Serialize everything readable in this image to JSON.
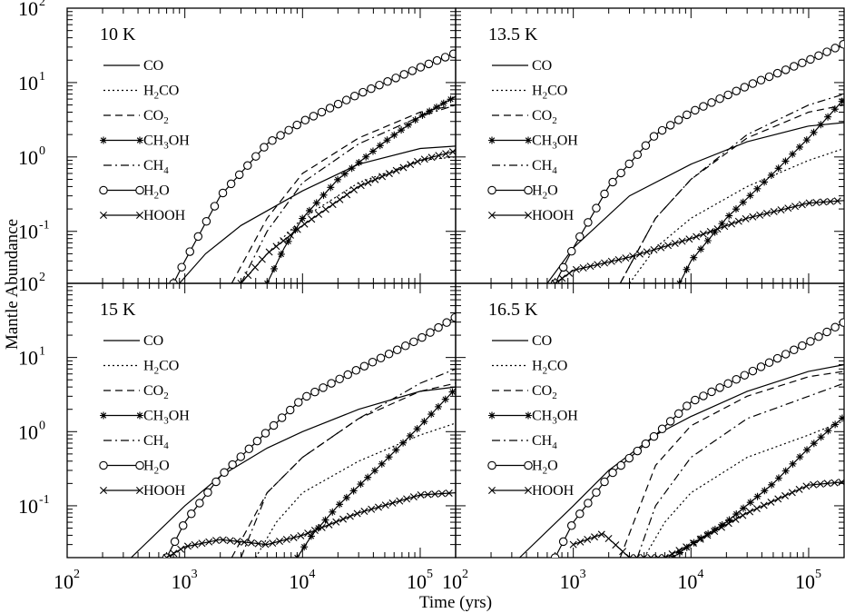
{
  "figure": {
    "xlabel": "Time (yrs)",
    "ylabel": "Mantle Abundance"
  },
  "chart_data": [
    {
      "type": "line",
      "title": "10 K",
      "xscale": "log",
      "yscale": "log",
      "xlim": [
        100,
        200000
      ],
      "ylim": [
        0.02,
        100
      ],
      "xlabel": "Time (yrs)",
      "ylabel": "Mantle Abundance",
      "legend": "top-left",
      "series": [
        {
          "name": "CO",
          "marker": "none",
          "dash": "solid",
          "x": [
            900,
            1500,
            3000,
            10000,
            30000,
            100000,
            200000
          ],
          "y": [
            0.02,
            0.05,
            0.12,
            0.35,
            0.8,
            1.3,
            1.4
          ]
        },
        {
          "name": "H2CO",
          "marker": "none",
          "dash": "dotted",
          "x": [
            3000,
            5000,
            10000,
            30000,
            100000,
            200000
          ],
          "y": [
            0.02,
            0.05,
            0.15,
            0.45,
            0.9,
            1.0
          ]
        },
        {
          "name": "CO2",
          "marker": "none",
          "dash": "dashed",
          "x": [
            2500,
            5000,
            10000,
            30000,
            100000,
            200000
          ],
          "y": [
            0.02,
            0.15,
            0.6,
            1.8,
            4.0,
            5.0
          ]
        },
        {
          "name": "CH3OH",
          "marker": "star",
          "dash": "solid",
          "x": [
            5000,
            7000,
            10000,
            20000,
            50000,
            100000,
            200000
          ],
          "y": [
            0.02,
            0.06,
            0.15,
            0.5,
            1.6,
            3.5,
            6.5
          ]
        },
        {
          "name": "CH4",
          "marker": "none",
          "dash": "dashdot",
          "x": [
            3000,
            5000,
            10000,
            30000,
            100000,
            200000
          ],
          "y": [
            0.02,
            0.1,
            0.45,
            1.5,
            3.5,
            5.0
          ]
        },
        {
          "name": "H2O",
          "marker": "circle",
          "dash": "solid",
          "x": [
            800,
            1000,
            2000,
            5000,
            10000,
            30000,
            100000,
            200000
          ],
          "y": [
            0.02,
            0.04,
            0.3,
            1.5,
            3.0,
            7.0,
            16.0,
            25.0
          ]
        },
        {
          "name": "HOOH",
          "marker": "x",
          "dash": "solid",
          "x": [
            3000,
            5000,
            10000,
            30000,
            100000,
            200000
          ],
          "y": [
            0.02,
            0.05,
            0.12,
            0.4,
            0.9,
            1.2
          ]
        }
      ]
    },
    {
      "type": "line",
      "title": "13.5 K",
      "xscale": "log",
      "yscale": "log",
      "xlim": [
        100,
        200000
      ],
      "ylim": [
        0.02,
        100
      ],
      "xlabel": "Time (yrs)",
      "ylabel": "Mantle Abundance",
      "legend": "top-left",
      "series": [
        {
          "name": "CO",
          "marker": "none",
          "dash": "solid",
          "x": [
            600,
            1000,
            3000,
            10000,
            30000,
            100000,
            200000
          ],
          "y": [
            0.02,
            0.06,
            0.3,
            0.8,
            1.6,
            2.6,
            2.9
          ]
        },
        {
          "name": "H2CO",
          "marker": "none",
          "dash": "dotted",
          "x": [
            3000,
            5000,
            10000,
            30000,
            100000,
            200000
          ],
          "y": [
            0.02,
            0.06,
            0.15,
            0.4,
            0.9,
            1.3
          ]
        },
        {
          "name": "CO2",
          "marker": "none",
          "dash": "dashed",
          "x": [
            2500,
            5000,
            10000,
            30000,
            100000,
            200000
          ],
          "y": [
            0.02,
            0.15,
            0.5,
            1.8,
            4.0,
            5.0
          ]
        },
        {
          "name": "CH3OH",
          "marker": "star",
          "dash": "solid",
          "x": [
            8000,
            10000,
            20000,
            50000,
            100000,
            200000
          ],
          "y": [
            0.02,
            0.04,
            0.15,
            0.6,
            1.8,
            6.0
          ]
        },
        {
          "name": "CH4",
          "marker": "none",
          "dash": "dashdot",
          "x": [
            2500,
            5000,
            10000,
            30000,
            100000,
            200000
          ],
          "y": [
            0.02,
            0.15,
            0.5,
            2.0,
            5.0,
            7.0
          ]
        },
        {
          "name": "H2O",
          "marker": "circle",
          "dash": "solid",
          "x": [
            700,
            1000,
            2000,
            5000,
            10000,
            30000,
            100000,
            200000
          ],
          "y": [
            0.02,
            0.06,
            0.4,
            2.0,
            4.0,
            9.0,
            20.0,
            33.0
          ]
        },
        {
          "name": "HOOH",
          "marker": "x",
          "dash": "solid",
          "x": [
            700,
            1000,
            3000,
            10000,
            30000,
            100000,
            200000
          ],
          "y": [
            0.02,
            0.03,
            0.045,
            0.08,
            0.15,
            0.24,
            0.26
          ]
        }
      ]
    },
    {
      "type": "line",
      "title": "15 K",
      "xscale": "log",
      "yscale": "log",
      "xlim": [
        100,
        200000
      ],
      "ylim": [
        0.02,
        100
      ],
      "xlabel": "Time (yrs)",
      "ylabel": "Mantle Abundance",
      "legend": "top-left",
      "series": [
        {
          "name": "CO",
          "marker": "none",
          "dash": "solid",
          "x": [
            350,
            1000,
            2000,
            5000,
            10000,
            30000,
            100000,
            200000
          ],
          "y": [
            0.02,
            0.1,
            0.25,
            0.6,
            1.0,
            2.0,
            3.5,
            4.0
          ]
        },
        {
          "name": "H2CO",
          "marker": "none",
          "dash": "dotted",
          "x": [
            4000,
            6000,
            10000,
            30000,
            100000,
            200000
          ],
          "y": [
            0.02,
            0.06,
            0.15,
            0.4,
            0.9,
            1.3
          ]
        },
        {
          "name": "CO2",
          "marker": "none",
          "dash": "dashed",
          "x": [
            2500,
            5000,
            10000,
            30000,
            100000,
            200000
          ],
          "y": [
            0.02,
            0.15,
            0.45,
            1.5,
            3.5,
            4.5
          ]
        },
        {
          "name": "CH3OH",
          "marker": "star",
          "dash": "solid",
          "x": [
            9000,
            12000,
            20000,
            50000,
            100000,
            200000
          ],
          "y": [
            0.02,
            0.04,
            0.1,
            0.4,
            1.2,
            3.8
          ]
        },
        {
          "name": "CH4",
          "marker": "none",
          "dash": "dashdot",
          "x": [
            3000,
            5000,
            10000,
            30000,
            100000,
            200000
          ],
          "y": [
            0.02,
            0.15,
            0.45,
            1.5,
            4.5,
            7.0
          ]
        },
        {
          "name": "H2O",
          "marker": "circle",
          "dash": "solid",
          "x": [
            700,
            1000,
            2000,
            5000,
            10000,
            30000,
            100000,
            200000
          ],
          "y": [
            0.02,
            0.06,
            0.25,
            1.0,
            2.8,
            7.0,
            18.0,
            35.0
          ]
        },
        {
          "name": "HOOH",
          "marker": "x",
          "dash": "solid",
          "x": [
            700,
            1000,
            2000,
            5000,
            10000,
            30000,
            100000,
            200000
          ],
          "y": [
            0.02,
            0.028,
            0.035,
            0.03,
            0.04,
            0.08,
            0.14,
            0.15
          ]
        }
      ]
    },
    {
      "type": "line",
      "title": "16.5 K",
      "xscale": "log",
      "yscale": "log",
      "xlim": [
        100,
        200000
      ],
      "ylim": [
        0.02,
        100
      ],
      "xlabel": "Time (yrs)",
      "ylabel": "Mantle Abundance",
      "legend": "top-left",
      "series": [
        {
          "name": "CO",
          "marker": "none",
          "dash": "solid",
          "x": [
            350,
            1000,
            2000,
            5000,
            10000,
            30000,
            100000,
            200000
          ],
          "y": [
            0.02,
            0.1,
            0.3,
            0.9,
            1.6,
            3.5,
            6.5,
            8.0
          ]
        },
        {
          "name": "H2CO",
          "marker": "none",
          "dash": "dotted",
          "x": [
            4000,
            6000,
            10000,
            30000,
            100000,
            200000
          ],
          "y": [
            0.02,
            0.06,
            0.15,
            0.45,
            0.9,
            1.4
          ]
        },
        {
          "name": "CO2",
          "marker": "none",
          "dash": "dashed",
          "x": [
            2500,
            5000,
            10000,
            30000,
            100000,
            200000
          ],
          "y": [
            0.02,
            0.35,
            1.2,
            3.0,
            5.5,
            6.5
          ]
        },
        {
          "name": "CH3OH",
          "marker": "star",
          "dash": "solid",
          "x": [
            7000,
            10000,
            20000,
            50000,
            100000,
            200000
          ],
          "y": [
            0.02,
            0.03,
            0.06,
            0.2,
            0.6,
            1.6
          ]
        },
        {
          "name": "CH4",
          "marker": "none",
          "dash": "dashdot",
          "x": [
            3500,
            5000,
            10000,
            30000,
            100000,
            200000
          ],
          "y": [
            0.02,
            0.1,
            0.45,
            1.5,
            3.0,
            4.5
          ]
        },
        {
          "name": "H2O",
          "marker": "circle",
          "dash": "solid",
          "x": [
            700,
            1000,
            2000,
            5000,
            10000,
            30000,
            100000,
            200000
          ],
          "y": [
            0.02,
            0.06,
            0.25,
            0.9,
            2.5,
            6.0,
            16.0,
            30.0
          ]
        },
        {
          "name": "HOOH",
          "marker": "x",
          "dash": "solid",
          "x": [
            1000,
            1800,
            3000,
            6000,
            10000,
            30000,
            100000,
            200000
          ],
          "y": [
            0.03,
            0.042,
            0.02,
            0.02,
            0.03,
            0.08,
            0.19,
            0.21
          ]
        }
      ]
    }
  ]
}
